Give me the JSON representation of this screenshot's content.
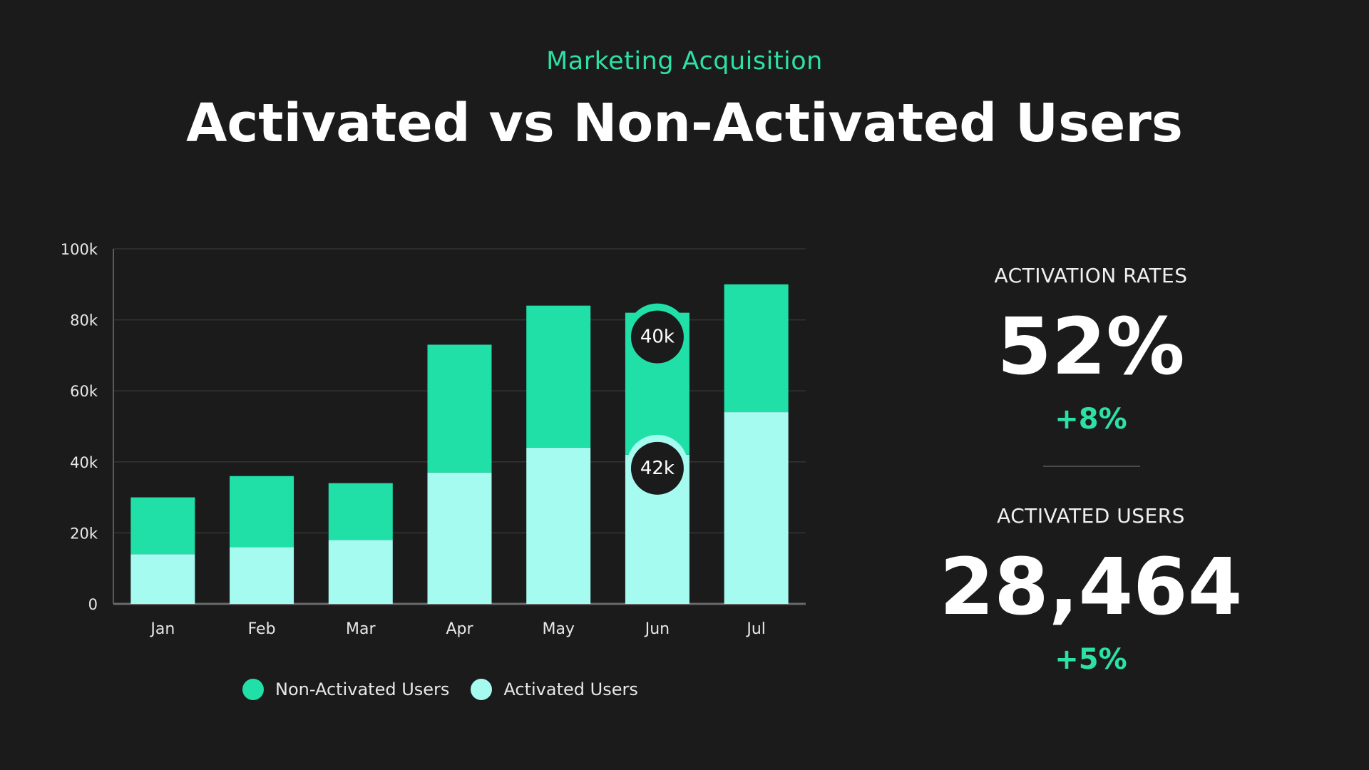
{
  "header": {
    "subtitle": "Marketing Acquisition",
    "title": "Activated vs Non-Activated Users"
  },
  "colors": {
    "background": "#1b1b1c",
    "non_activated": "#20e0a8",
    "activated": "#a5fbf0",
    "accent": "#2de0a5",
    "callout_fill": "#1b1b1c"
  },
  "chart_data": {
    "type": "bar",
    "stacked": true,
    "categories": [
      "Jan",
      "Feb",
      "Mar",
      "Apr",
      "May",
      "Jun",
      "Jul"
    ],
    "series": [
      {
        "name": "Activated Users",
        "values": [
          14000,
          16000,
          18000,
          37000,
          44000,
          42000,
          54000
        ]
      },
      {
        "name": "Non-Activated Users",
        "values": [
          16000,
          20000,
          16000,
          36000,
          40000,
          40000,
          36000
        ]
      }
    ],
    "y_ticks": [
      "0",
      "20k",
      "40k",
      "60k",
      "80k",
      "100k"
    ],
    "ylim": [
      0,
      100000
    ],
    "grid": true,
    "legend_position": "bottom",
    "callouts": [
      {
        "category": "Jun",
        "series": "Non-Activated Users",
        "label": "40k"
      },
      {
        "category": "Jun",
        "series": "Activated Users",
        "label": "42k"
      }
    ]
  },
  "kpis": {
    "activation_rates": {
      "label": "ACTIVATION RATES",
      "value": "52%",
      "delta": "+8%"
    },
    "activated_users": {
      "label": "ACTIVATED USERS",
      "value": "28,464",
      "delta": "+5%"
    }
  }
}
